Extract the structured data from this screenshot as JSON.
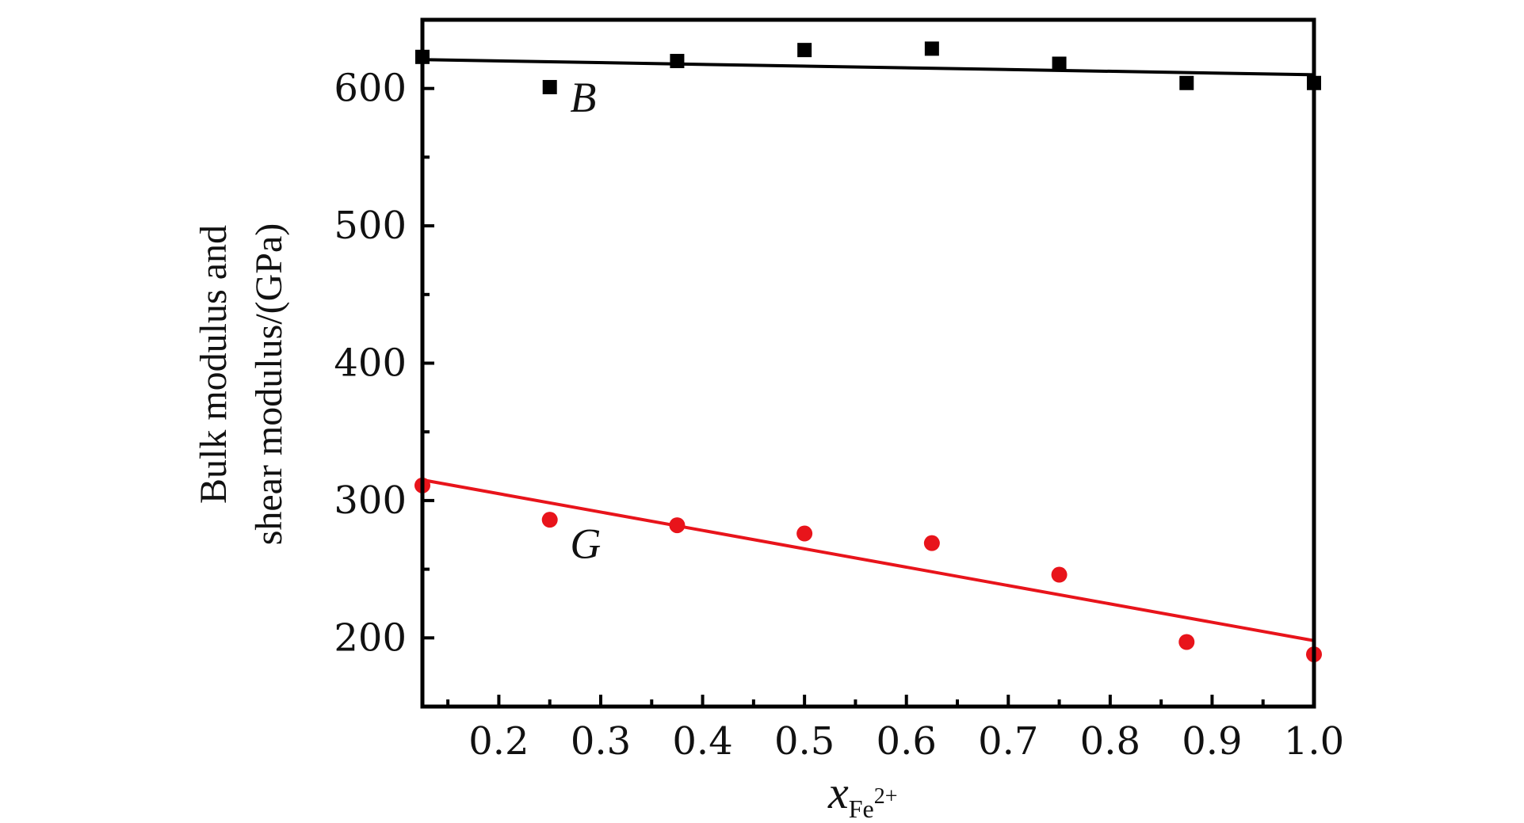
{
  "chart_data": {
    "type": "scatter",
    "xlabel": {
      "main": "x",
      "subscript": "Fe",
      "superscript": "2+"
    },
    "ylabel_lines": [
      "Bulk modulus and",
      "shear modulus/(GPa)"
    ],
    "xlim": [
      0.125,
      1.0
    ],
    "ylim": [
      150,
      650
    ],
    "x_ticks": [
      "0.2",
      "0.3",
      "0.4",
      "0.5",
      "0.6",
      "0.7",
      "0.8",
      "0.9",
      "1.0"
    ],
    "y_ticks": [
      "200",
      "300",
      "400",
      "500",
      "600"
    ],
    "series": [
      {
        "name": "B",
        "marker": "square",
        "color": "#000000",
        "x": [
          0.125,
          0.25,
          0.375,
          0.5,
          0.625,
          0.75,
          0.875,
          1.0
        ],
        "y": [
          623,
          601,
          620,
          628,
          629,
          618,
          604,
          604
        ],
        "fit": {
          "x": [
            0.125,
            1.0
          ],
          "y": [
            621,
            610
          ]
        }
      },
      {
        "name": "G",
        "marker": "circle",
        "color": "#e8141b",
        "x": [
          0.125,
          0.25,
          0.375,
          0.5,
          0.625,
          0.75,
          0.875,
          1.0
        ],
        "y": [
          311,
          286,
          282,
          276,
          269,
          246,
          197,
          188
        ],
        "fit": {
          "x": [
            0.125,
            1.0
          ],
          "y": [
            315,
            198
          ]
        }
      }
    ]
  }
}
